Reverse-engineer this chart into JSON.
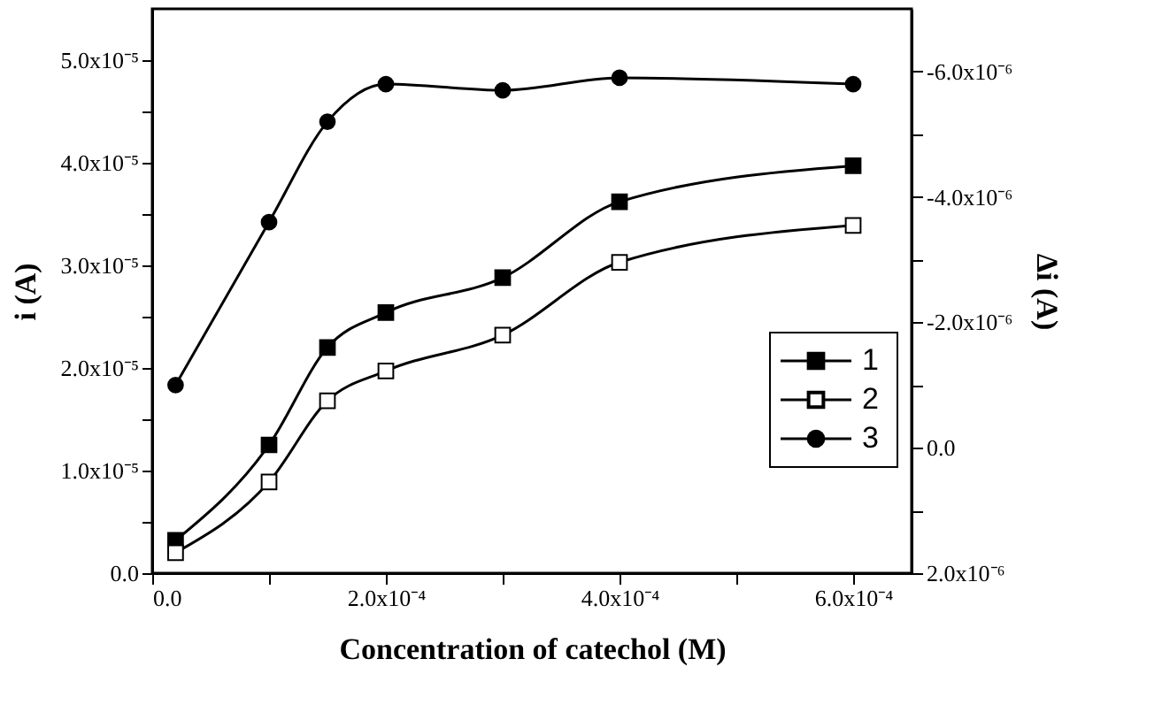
{
  "chart_data": {
    "type": "line",
    "xlabel": "Concentration of catechol (M)",
    "ylabel": "i (A)",
    "y2label": "Δi (A)",
    "x": [
      2e-05,
      0.0001,
      0.00015,
      0.0002,
      0.0003,
      0.0004,
      0.0006
    ],
    "series": [
      {
        "name": "1",
        "color": "#000000",
        "marker": "square",
        "values": [
          3.2e-06,
          1.25e-05,
          2.2e-05,
          2.54e-05,
          2.88e-05,
          3.62e-05,
          3.97e-05
        ]
      },
      {
        "name": "2",
        "color": "#000000",
        "marker": "square",
        "values": [
          2e-06,
          8.9e-06,
          1.68e-05,
          1.97e-05,
          2.32e-05,
          3.03e-05,
          3.39e-05
        ]
      },
      {
        "name": "3",
        "color": "#000000",
        "marker": "circle",
        "axis": "y2",
        "values": [
          -1e-06,
          -3.6e-06,
          -5.2e-06,
          -5.8e-06,
          -5.7e-06,
          -5.9e-06,
          -5.8e-06
        ]
      }
    ],
    "xlim": [
      0,
      0.00065
    ],
    "xticks": [
      {
        "value": 0,
        "label": "0.0"
      },
      {
        "value": 0.0001,
        "label": null
      },
      {
        "value": 0.0002,
        "label": "2.0x10⁻⁴"
      },
      {
        "value": 0.0003,
        "label": null
      },
      {
        "value": 0.0004,
        "label": "4.0x10⁻⁴"
      },
      {
        "value": 0.0005,
        "label": null
      },
      {
        "value": 0.0006,
        "label": "6.0x10⁻⁴"
      }
    ],
    "ylim": [
      0,
      5.5e-05
    ],
    "yticks": [
      {
        "value": 0,
        "label": "0.0"
      },
      {
        "value": 5e-06,
        "label": null
      },
      {
        "value": 1e-05,
        "label": "1.0x10⁻⁵"
      },
      {
        "value": 1.5e-05,
        "label": null
      },
      {
        "value": 2e-05,
        "label": "2.0x10⁻⁵"
      },
      {
        "value": 2.5e-05,
        "label": null
      },
      {
        "value": 3e-05,
        "label": "3.0x10⁻⁵"
      },
      {
        "value": 3.5e-05,
        "label": null
      },
      {
        "value": 4e-05,
        "label": "4.0x10⁻⁵"
      },
      {
        "value": 4.5e-05,
        "label": null
      },
      {
        "value": 5e-05,
        "label": "5.0x10⁻⁵"
      }
    ],
    "y2lim": [
      2e-06,
      -7e-06
    ],
    "y2ticks": [
      {
        "value": 2e-06,
        "label": "2.0x10⁻⁶"
      },
      {
        "value": 1e-06,
        "label": null
      },
      {
        "value": 0,
        "label": "0.0"
      },
      {
        "value": -1e-06,
        "label": null
      },
      {
        "value": -2e-06,
        "label": "-2.0x10⁻⁶"
      },
      {
        "value": -3e-06,
        "label": null
      },
      {
        "value": -4e-06,
        "label": "-4.0x10⁻⁶"
      },
      {
        "value": -5e-06,
        "label": null
      },
      {
        "value": -6e-06,
        "label": "-6.0x10⁻⁶"
      }
    ],
    "grid": false,
    "legend": "bottom right",
    "line_style": "solid"
  }
}
